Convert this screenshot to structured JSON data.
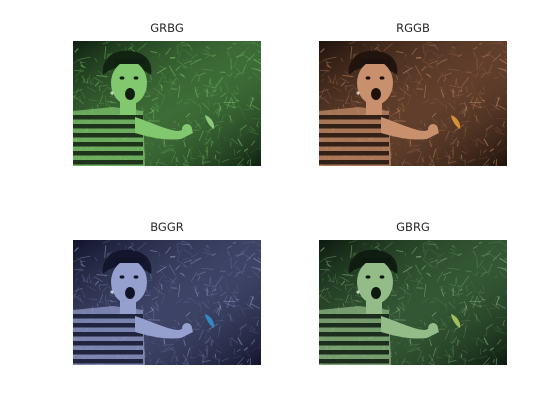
{
  "panels": [
    {
      "title": "GRBG",
      "tint": "#6fbf62",
      "skin": "#92e07c",
      "dark": "#0f1f10",
      "accent": "#9fe28a"
    },
    {
      "title": "RGGB",
      "tint": "#a9704f",
      "skin": "#e0a27b",
      "dark": "#1e120c",
      "accent": "#f0a23c"
    },
    {
      "title": "BGGR",
      "tint": "#6d79a8",
      "skin": "#a8b4e6",
      "dark": "#12142a",
      "accent": "#3a9ad8"
    },
    {
      "title": "GBRG",
      "tint": "#5c9a5b",
      "skin": "#a6d39a",
      "dark": "#0d1a0f",
      "accent": "#b9d46a"
    }
  ]
}
